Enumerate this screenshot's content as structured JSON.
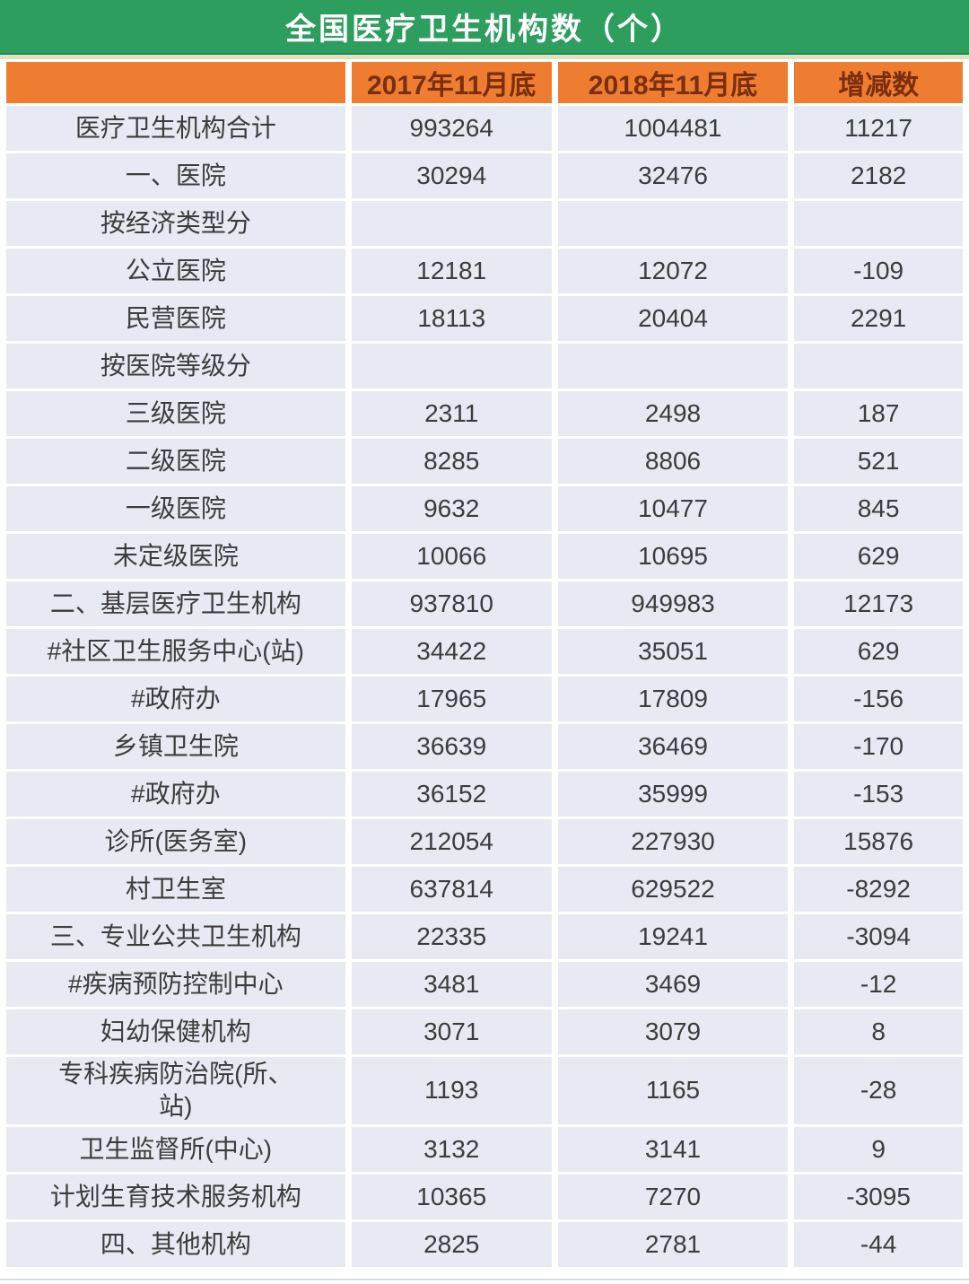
{
  "title": "全国医疗卫生机构数（个）",
  "colors": {
    "title_bg": "#2E9E5F",
    "title_text": "#FFFFFF",
    "header_bg": "#EE7D31",
    "header_text": "#7A2E0E",
    "cell_bg": "#E7EAF2",
    "cell_text": "#3C3C3C"
  },
  "chart_data": {
    "type": "table",
    "title": "全国医疗卫生机构数（个）",
    "columns": [
      "",
      "2017年11月底",
      "2018年11月底",
      "增减数"
    ],
    "rows": [
      [
        "医疗卫生机构合计",
        "993264",
        "1004481",
        "11217"
      ],
      [
        "一、医院",
        "30294",
        "32476",
        "2182"
      ],
      [
        "按经济类型分",
        "",
        "",
        ""
      ],
      [
        "公立医院",
        "12181",
        "12072",
        "-109"
      ],
      [
        "民营医院",
        "18113",
        "20404",
        "2291"
      ],
      [
        "按医院等级分",
        "",
        "",
        ""
      ],
      [
        "三级医院",
        "2311",
        "2498",
        "187"
      ],
      [
        "二级医院",
        "8285",
        "8806",
        "521"
      ],
      [
        "一级医院",
        "9632",
        "10477",
        "845"
      ],
      [
        "未定级医院",
        "10066",
        "10695",
        "629"
      ],
      [
        "二、基层医疗卫生机构",
        "937810",
        "949983",
        "12173"
      ],
      [
        "#社区卫生服务中心(站)",
        "34422",
        "35051",
        "629"
      ],
      [
        "#政府办",
        "17965",
        "17809",
        "-156"
      ],
      [
        "乡镇卫生院",
        "36639",
        "36469",
        "-170"
      ],
      [
        "#政府办",
        "36152",
        "35999",
        "-153"
      ],
      [
        "诊所(医务室)",
        "212054",
        "227930",
        "15876"
      ],
      [
        "村卫生室",
        "637814",
        "629522",
        "-8292"
      ],
      [
        "三、专业公共卫生机构",
        "22335",
        "19241",
        "-3094"
      ],
      [
        "#疾病预防控制中心",
        "3481",
        "3469",
        "-12"
      ],
      [
        "妇幼保健机构",
        "3071",
        "3079",
        "8"
      ],
      [
        "专科疾病防治院(所、\n站)",
        "1193",
        "1165",
        "-28"
      ],
      [
        "卫生监督所(中心)",
        "3132",
        "3141",
        "9"
      ],
      [
        "计划生育技术服务机构",
        "10365",
        "7270",
        "-3095"
      ],
      [
        "四、其他机构",
        "2825",
        "2781",
        "-44"
      ]
    ]
  }
}
